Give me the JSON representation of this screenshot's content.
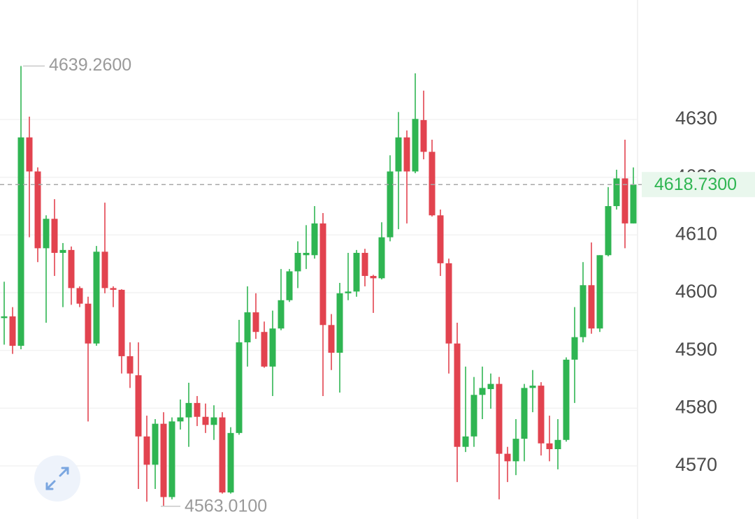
{
  "chart_data": {
    "type": "candlestick",
    "up_color": "#2fb552",
    "down_color": "#e2434f",
    "ylim": [
      4560.8,
      4650.7
    ],
    "yticks": [
      4570,
      4580,
      4590,
      4600,
      4610,
      4620,
      4630
    ],
    "grid": true,
    "open": [
      4595.6,
      4595.9,
      4590.8,
      4626.9,
      4621.0,
      4607.7,
      4612.8,
      4606.9,
      4607.4,
      4600.8,
      4598.1,
      4591.2,
      4607.1,
      4600.8,
      4600.5,
      4589.0,
      4585.7,
      4575.1,
      4570.2,
      4577.3,
      4564.6,
      4577.7,
      4578.4,
      4580.9,
      4578.5,
      4577.1,
      4578.4,
      4565.4,
      4575.7,
      4591.4,
      4596.6,
      4593.2,
      4587.2,
      4593.8,
      4598.7,
      4603.7,
      4606.5,
      4606.5,
      4612.0,
      4594.4,
      4589.6,
      4599.9,
      4600.2,
      4606.9,
      4602.9,
      4602.5,
      4609.6,
      4621.0,
      4626.9,
      4621.0,
      4629.9,
      4624.4,
      4613.4,
      4605.1,
      4591.2,
      4573.3,
      4575.1,
      4582.3,
      4583.3,
      4584.2,
      4572.1,
      4570.8,
      4574.7,
      4583.5,
      4583.9,
      4573.9,
      4572.9,
      4574.5,
      4588.4,
      4592.3,
      4601.3,
      4593.8,
      4606.5,
      4615.0,
      4619.8,
      4612.0
    ],
    "high": [
      4601.9,
      4597.5,
      4639.26,
      4630.5,
      4621.7,
      4613.4,
      4616.2,
      4608.6,
      4608.0,
      4601.1,
      4599.3,
      4608.1,
      4615.6,
      4601.1,
      4600.6,
      4591.4,
      4591.4,
      4578.7,
      4578.1,
      4579.3,
      4578.4,
      4581.5,
      4584.4,
      4582.1,
      4580.8,
      4580.5,
      4579.3,
      4576.7,
      4595.3,
      4601.1,
      4599.9,
      4595.0,
      4596.9,
      4604.1,
      4604.1,
      4608.9,
      4611.7,
      4615.0,
      4613.8,
      4596.3,
      4601.7,
      4606.9,
      4607.4,
      4607.6,
      4603.1,
      4612.2,
      4623.8,
      4631.3,
      4628.1,
      4638.0,
      4635.0,
      4626.5,
      4614.4,
      4605.9,
      4594.8,
      4587.2,
      4585.4,
      4587.2,
      4586.0,
      4585.4,
      4573.3,
      4578.1,
      4584.2,
      4586.6,
      4584.5,
      4578.7,
      4578.1,
      4588.8,
      4597.5,
      4605.3,
      4608.7,
      4606.5,
      4618.3,
      4621.3,
      4626.5,
      4621.7
    ],
    "low": [
      4591.0,
      4589.4,
      4590.2,
      4609.6,
      4605.3,
      4594.8,
      4602.9,
      4597.5,
      4597.9,
      4597.5,
      4577.7,
      4590.8,
      4599.9,
      4597.5,
      4586.0,
      4583.5,
      4566.0,
      4563.8,
      4566.0,
      4563.01,
      4564.2,
      4576.3,
      4573.3,
      4576.9,
      4575.7,
      4574.5,
      4565.2,
      4565.2,
      4575.4,
      4587.2,
      4592.0,
      4587.0,
      4582.1,
      4593.5,
      4598.4,
      4600.8,
      4604.1,
      4605.9,
      4582.1,
      4586.6,
      4582.7,
      4598.7,
      4599.3,
      4601.1,
      4596.5,
      4602.3,
      4608.9,
      4611.0,
      4612.0,
      4620.7,
      4623.1,
      4613.2,
      4602.9,
      4586.0,
      4567.2,
      4572.4,
      4573.3,
      4578.1,
      4579.9,
      4564.2,
      4567.2,
      4568.4,
      4570.8,
      4579.3,
      4571.8,
      4570.8,
      4569.4,
      4574.2,
      4580.9,
      4591.4,
      4592.9,
      4593.2,
      4606.3,
      4614.4,
      4607.7,
      4612.0
    ],
    "close": [
      4595.9,
      4590.8,
      4626.9,
      4621.0,
      4607.7,
      4612.8,
      4606.9,
      4607.4,
      4600.8,
      4598.1,
      4591.2,
      4607.1,
      4600.8,
      4600.5,
      4589.0,
      4586.0,
      4575.1,
      4570.2,
      4577.3,
      4564.6,
      4577.7,
      4578.4,
      4580.9,
      4578.5,
      4577.1,
      4578.4,
      4565.4,
      4575.7,
      4591.4,
      4596.6,
      4593.2,
      4587.2,
      4593.8,
      4598.7,
      4603.7,
      4606.9,
      4606.9,
      4612.0,
      4594.4,
      4589.6,
      4599.9,
      4600.2,
      4606.9,
      4602.9,
      4602.5,
      4609.6,
      4621.0,
      4626.9,
      4621.0,
      4630.1,
      4624.4,
      4613.4,
      4605.1,
      4591.2,
      4573.3,
      4575.1,
      4582.3,
      4583.5,
      4584.2,
      4572.1,
      4570.8,
      4574.7,
      4583.5,
      4583.9,
      4573.9,
      4572.9,
      4574.5,
      4588.4,
      4592.3,
      4601.3,
      4593.8,
      4606.5,
      4615.0,
      4619.8,
      4612.0,
      4618.73
    ],
    "max_marker": {
      "index": 2,
      "value": 4639.26,
      "label": "4639.2600"
    },
    "min_marker": {
      "index": 19,
      "value": 4563.01,
      "label": "4563.0100"
    },
    "last_price": {
      "value": 4618.73,
      "label": "4618.7300"
    }
  }
}
